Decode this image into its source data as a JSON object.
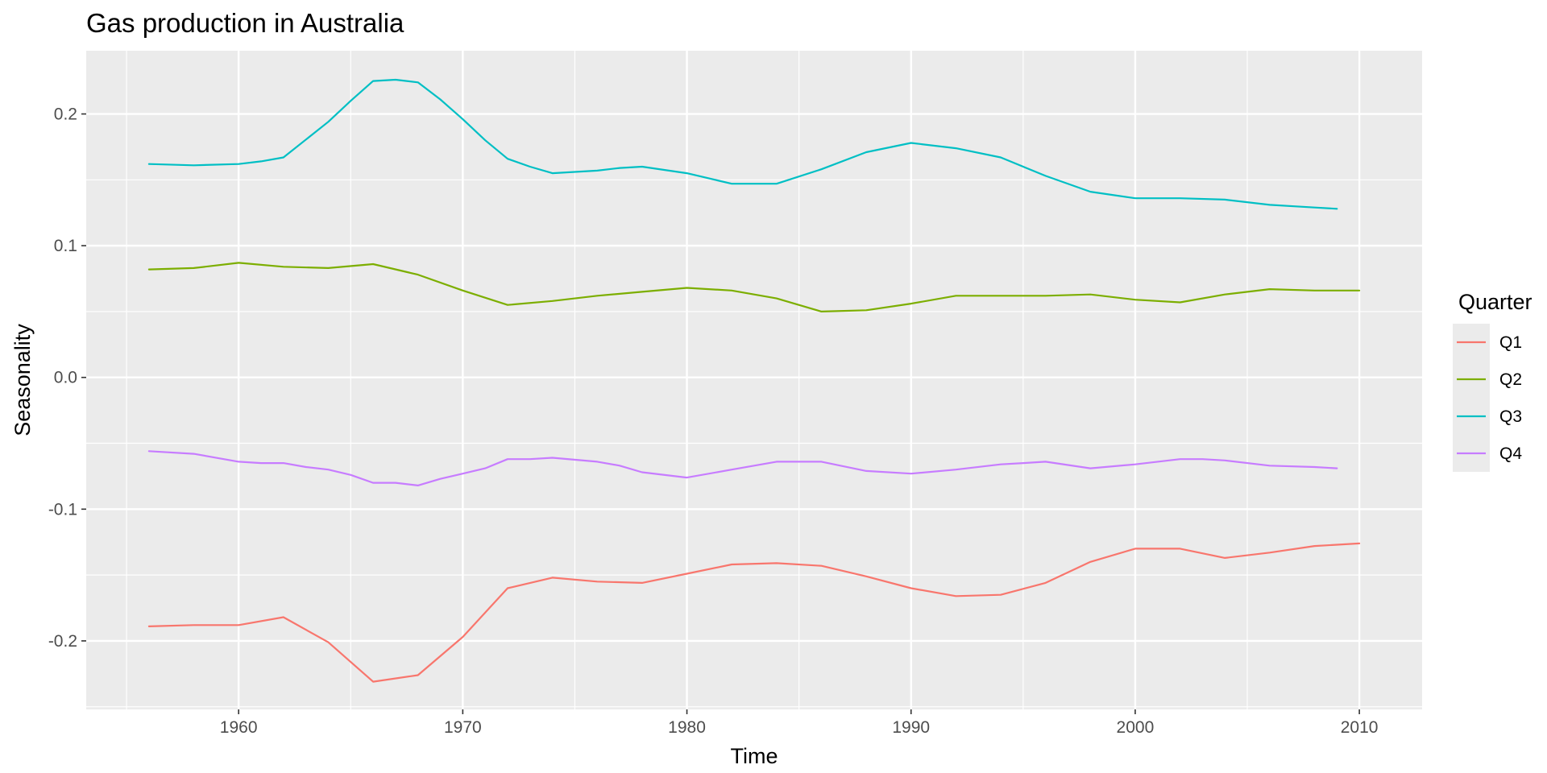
{
  "chart_data": {
    "type": "line",
    "title": "Gas production in Australia",
    "xlabel": "Time",
    "ylabel": "Seasonality",
    "xlim": [
      1953.2,
      2012.8
    ],
    "ylim": [
      -0.252,
      0.248
    ],
    "x_ticks": [
      1960,
      1970,
      1980,
      1990,
      2000,
      2010
    ],
    "x_tick_labels": [
      "1960",
      "1970",
      "1980",
      "1990",
      "2000",
      "2010"
    ],
    "y_ticks": [
      -0.2,
      -0.1,
      0.0,
      0.1,
      0.2
    ],
    "y_tick_labels": [
      "-0.2",
      "-0.1",
      "0.0",
      "0.1",
      "0.2"
    ],
    "grid": true,
    "legend": {
      "title": "Quarter",
      "position": "right"
    },
    "series": [
      {
        "name": "Q1",
        "color": "#F8766D",
        "x": [
          1956,
          1958,
          1960,
          1962,
          1964,
          1966,
          1968,
          1970,
          1972,
          1974,
          1976,
          1978,
          1980,
          1982,
          1984,
          1986,
          1988,
          1990,
          1992,
          1994,
          1996,
          1998,
          2000,
          2002,
          2004,
          2006,
          2008,
          2010
        ],
        "values": [
          -0.189,
          -0.188,
          -0.188,
          -0.182,
          -0.201,
          -0.231,
          -0.226,
          -0.197,
          -0.16,
          -0.152,
          -0.155,
          -0.156,
          -0.149,
          -0.142,
          -0.141,
          -0.143,
          -0.151,
          -0.16,
          -0.166,
          -0.165,
          -0.156,
          -0.14,
          -0.13,
          -0.13,
          -0.137,
          -0.133,
          -0.128,
          -0.126
        ]
      },
      {
        "name": "Q2",
        "color": "#7CAE00",
        "x": [
          1956,
          1958,
          1960,
          1962,
          1964,
          1966,
          1968,
          1970,
          1972,
          1974,
          1976,
          1978,
          1980,
          1982,
          1984,
          1986,
          1988,
          1990,
          1992,
          1994,
          1996,
          1998,
          2000,
          2002,
          2004,
          2006,
          2008,
          2010
        ],
        "values": [
          0.082,
          0.083,
          0.087,
          0.084,
          0.083,
          0.086,
          0.078,
          0.066,
          0.055,
          0.058,
          0.062,
          0.065,
          0.068,
          0.066,
          0.06,
          0.05,
          0.051,
          0.056,
          0.062,
          0.062,
          0.062,
          0.063,
          0.059,
          0.057,
          0.063,
          0.067,
          0.066,
          0.066
        ]
      },
      {
        "name": "Q3",
        "color": "#00BFC4",
        "x": [
          1956,
          1958,
          1960,
          1961,
          1962,
          1964,
          1965,
          1966,
          1967,
          1968,
          1969,
          1970,
          1971,
          1972,
          1973,
          1974,
          1976,
          1977,
          1978,
          1980,
          1982,
          1984,
          1986,
          1988,
          1990,
          1992,
          1994,
          1996,
          1998,
          2000,
          2002,
          2004,
          2006,
          2008,
          2009
        ],
        "values": [
          0.162,
          0.161,
          0.162,
          0.164,
          0.167,
          0.194,
          0.21,
          0.225,
          0.226,
          0.224,
          0.211,
          0.196,
          0.18,
          0.166,
          0.16,
          0.155,
          0.157,
          0.159,
          0.16,
          0.155,
          0.147,
          0.147,
          0.158,
          0.171,
          0.178,
          0.174,
          0.167,
          0.153,
          0.141,
          0.136,
          0.136,
          0.135,
          0.131,
          0.129,
          0.128
        ]
      },
      {
        "name": "Q4",
        "color": "#C77CFF",
        "x": [
          1956,
          1958,
          1960,
          1961,
          1962,
          1963,
          1964,
          1965,
          1966,
          1967,
          1968,
          1969,
          1970,
          1971,
          1972,
          1973,
          1974,
          1976,
          1977,
          1978,
          1980,
          1982,
          1984,
          1986,
          1988,
          1990,
          1992,
          1994,
          1995,
          1996,
          1998,
          2000,
          2002,
          2003,
          2004,
          2006,
          2008,
          2009
        ],
        "values": [
          -0.056,
          -0.058,
          -0.064,
          -0.065,
          -0.065,
          -0.068,
          -0.07,
          -0.074,
          -0.08,
          -0.08,
          -0.082,
          -0.077,
          -0.073,
          -0.069,
          -0.062,
          -0.062,
          -0.061,
          -0.064,
          -0.067,
          -0.072,
          -0.076,
          -0.07,
          -0.064,
          -0.064,
          -0.071,
          -0.073,
          -0.07,
          -0.066,
          -0.065,
          -0.064,
          -0.069,
          -0.066,
          -0.062,
          -0.062,
          -0.063,
          -0.067,
          -0.068,
          -0.069
        ]
      }
    ]
  }
}
